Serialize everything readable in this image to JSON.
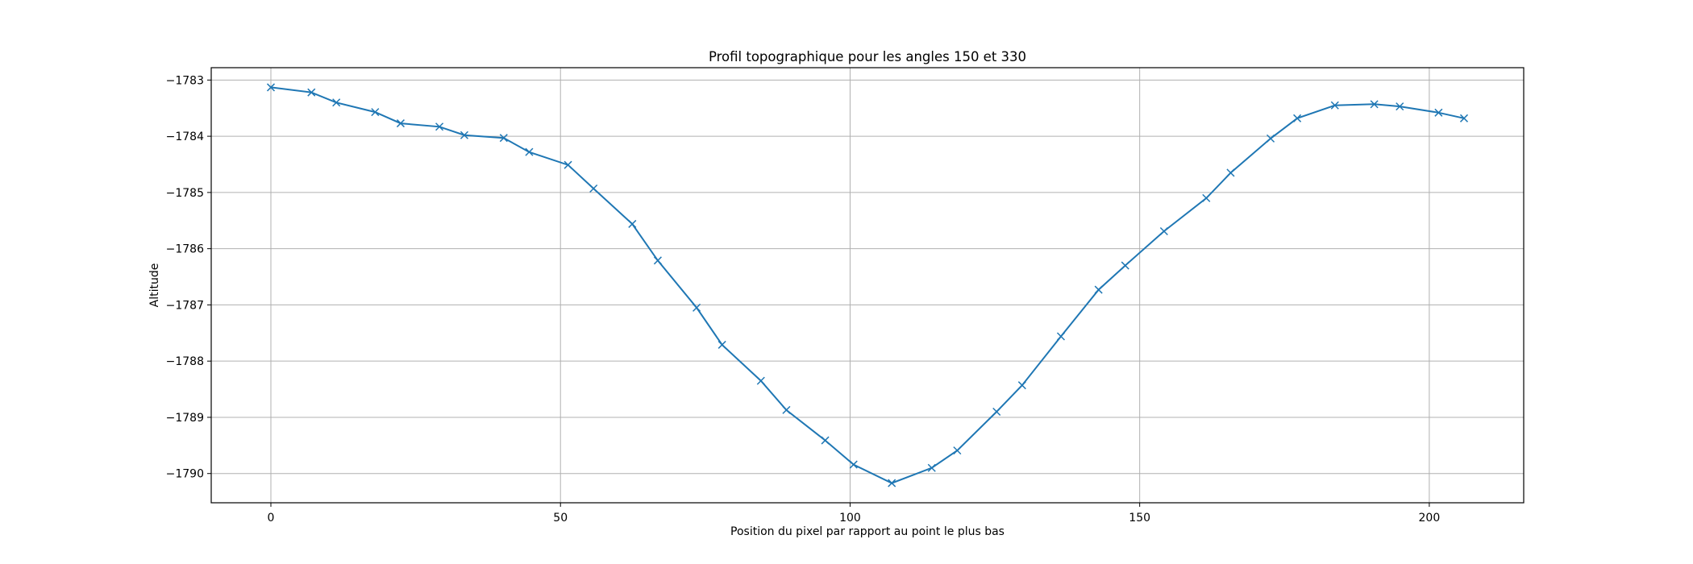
{
  "chart_data": {
    "type": "line",
    "title": "Profil topographique pour les angles 150 et 330",
    "xlabel": "Position du pixel par rapport au point le plus bas",
    "ylabel": "Altitude",
    "xlim": [
      -10.3,
      216.3
    ],
    "ylim": [
      -1790.52,
      -1782.78
    ],
    "xticks": [
      0,
      50,
      100,
      150,
      200
    ],
    "yticks": [
      -1783,
      -1784,
      -1785,
      -1786,
      -1787,
      -1788,
      -1789,
      -1790
    ],
    "xtick_labels": [
      "0",
      "50",
      "100",
      "150",
      "200"
    ],
    "ytick_labels": [
      "−1783",
      "−1784",
      "−1785",
      "−1786",
      "−1787",
      "−1788",
      "−1789",
      "−1790"
    ],
    "grid": true,
    "marker": "x",
    "color": "#1f77b4",
    "series": [
      {
        "x": [
          0,
          7,
          11.3,
          18,
          22.4,
          29.1,
          33.4,
          40.2,
          44.6,
          51.3,
          55.7,
          62.4,
          66.8,
          73.5,
          77.9,
          84.6,
          89,
          95.7,
          100.6,
          107.2,
          114.1,
          118.5,
          125.3,
          129.7,
          136.4,
          142.9,
          147.5,
          154.2,
          161.5,
          165.7,
          172.6,
          177.2,
          183.7,
          190.5,
          194.9,
          201.6,
          206
        ],
        "y": [
          -1783.13,
          -1783.22,
          -1783.4,
          -1783.57,
          -1783.77,
          -1783.83,
          -1783.98,
          -1784.03,
          -1784.28,
          -1784.51,
          -1784.93,
          -1785.56,
          -1786.21,
          -1787.05,
          -1787.71,
          -1788.35,
          -1788.87,
          -1789.41,
          -1789.84,
          -1790.17,
          -1789.9,
          -1789.59,
          -1788.9,
          -1788.43,
          -1787.56,
          -1786.73,
          -1786.3,
          -1785.69,
          -1785.1,
          -1784.65,
          -1784.04,
          -1783.68,
          -1783.45,
          -1783.43,
          -1783.47,
          -1783.58,
          -1783.68
        ]
      }
    ]
  }
}
